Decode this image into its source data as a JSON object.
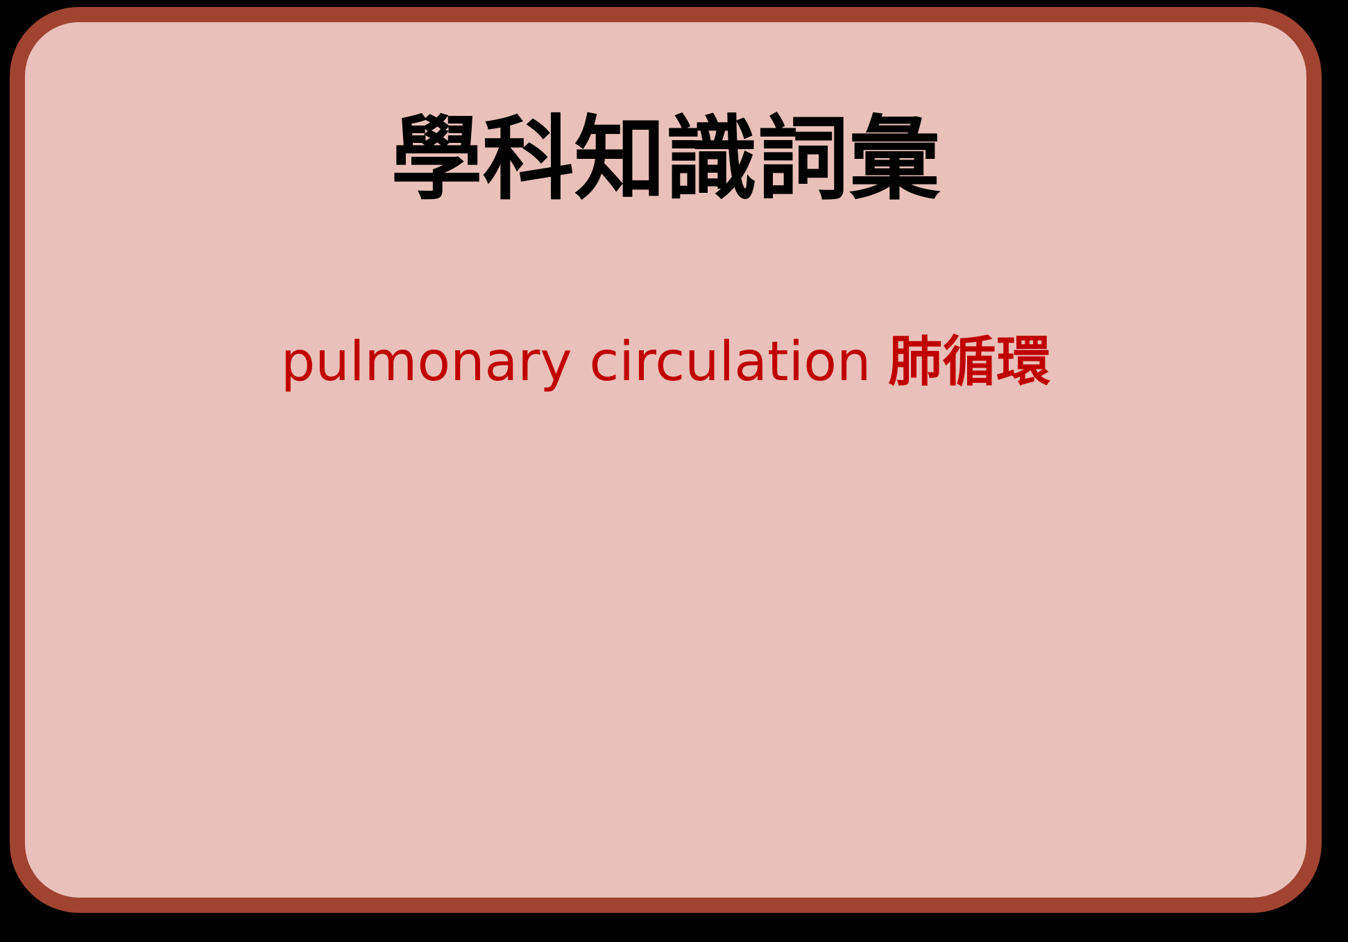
{
  "card": {
    "title": "學科知識詞彙",
    "term_en": "pulmonary circulation",
    "term_zh": "肺循環",
    "colors": {
      "background": "#e9c1ba",
      "border": "#a04431",
      "title": "#000000",
      "term": "#c00000"
    }
  }
}
